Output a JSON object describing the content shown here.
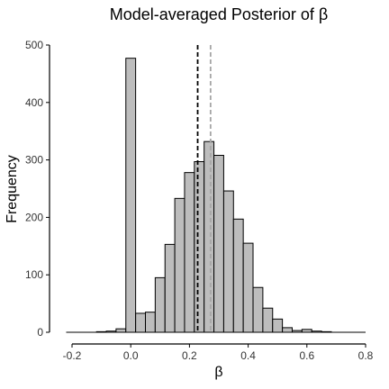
{
  "chart_data": {
    "type": "bar",
    "title": "Model-averaged Posterior of β",
    "xlabel": "β",
    "ylabel": "Frequency",
    "xlim": [
      -0.2,
      0.8
    ],
    "ylim": [
      0,
      500
    ],
    "xticks": [
      "-0.2",
      "0.0",
      "0.2",
      "0.4",
      "0.6",
      "0.8"
    ],
    "yticks": [
      "0",
      "100",
      "200",
      "300",
      "400",
      "500"
    ],
    "bin_width": 0.0333,
    "bins": [
      {
        "start": -0.1167,
        "count": 1
      },
      {
        "start": -0.0833,
        "count": 2
      },
      {
        "start": -0.05,
        "count": 6
      },
      {
        "start": -0.0167,
        "count": 477
      },
      {
        "start": 0.0167,
        "count": 33
      },
      {
        "start": 0.05,
        "count": 35
      },
      {
        "start": 0.0833,
        "count": 95
      },
      {
        "start": 0.1167,
        "count": 153
      },
      {
        "start": 0.15,
        "count": 233
      },
      {
        "start": 0.1833,
        "count": 278
      },
      {
        "start": 0.2167,
        "count": 297
      },
      {
        "start": 0.25,
        "count": 332
      },
      {
        "start": 0.2833,
        "count": 308
      },
      {
        "start": 0.3167,
        "count": 246
      },
      {
        "start": 0.35,
        "count": 197
      },
      {
        "start": 0.3833,
        "count": 155
      },
      {
        "start": 0.4167,
        "count": 78
      },
      {
        "start": 0.45,
        "count": 42
      },
      {
        "start": 0.4833,
        "count": 23
      },
      {
        "start": 0.5167,
        "count": 8
      },
      {
        "start": 0.55,
        "count": 3
      },
      {
        "start": 0.5833,
        "count": 5
      },
      {
        "start": 0.6167,
        "count": 2
      },
      {
        "start": 0.65,
        "count": 1
      }
    ],
    "reference_lines": [
      {
        "x": 0.228,
        "color": "#000000",
        "style": "dashed"
      },
      {
        "x": 0.272,
        "color": "#a6a6a6",
        "style": "dashed"
      }
    ],
    "bar_fill": "#bdbdbd",
    "bar_stroke": "#000000",
    "grid": false,
    "legend": "none"
  }
}
